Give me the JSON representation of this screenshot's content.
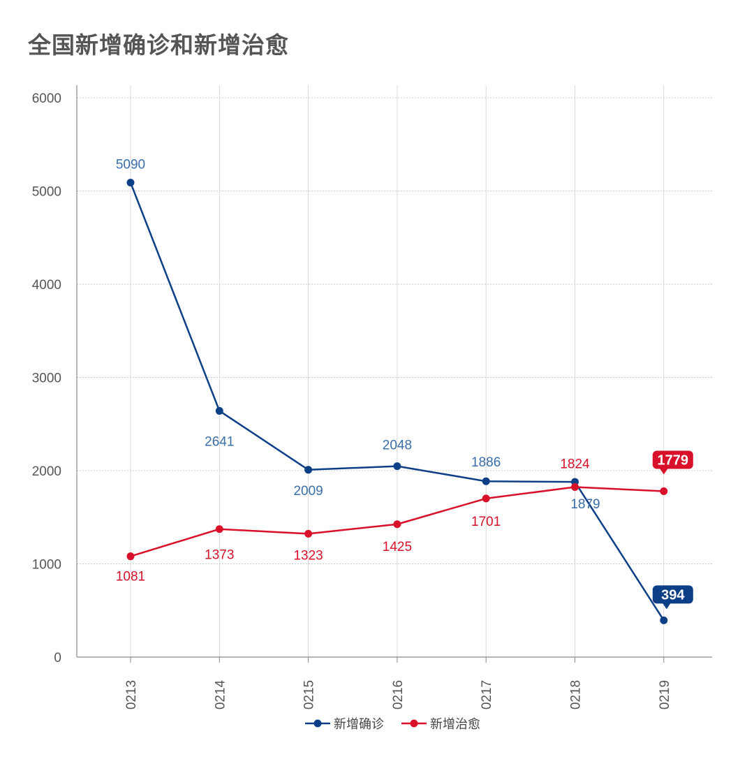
{
  "title": "全国新增确诊和新增治愈",
  "chart_data": {
    "type": "line",
    "categories": [
      "0213",
      "0214",
      "0215",
      "0216",
      "0217",
      "0218",
      "0219"
    ],
    "series": [
      {
        "name": "新增确诊",
        "color": "#0d3f87",
        "label_color": "#3a6ea8",
        "values": [
          5090,
          2641,
          2009,
          2048,
          1886,
          1879,
          394
        ],
        "labels": [
          "5090",
          "2641",
          "2009",
          "2048",
          "1886",
          "1879",
          "394"
        ]
      },
      {
        "name": "新增治愈",
        "color": "#d8102a",
        "label_color": "#d8102a",
        "values": [
          1081,
          1373,
          1323,
          1425,
          1701,
          1824,
          1779
        ],
        "labels": [
          "1081",
          "1373",
          "1323",
          "1425",
          "1701",
          "1824",
          "1779"
        ]
      }
    ],
    "ylim": [
      0,
      6000
    ],
    "yticks": [
      "0",
      "1000",
      "2000",
      "3000",
      "4000",
      "5000",
      "6000"
    ],
    "xlabel": "",
    "ylabel": "",
    "grid": true,
    "legend_position": "bottom-center",
    "highlight_last_point": true
  }
}
